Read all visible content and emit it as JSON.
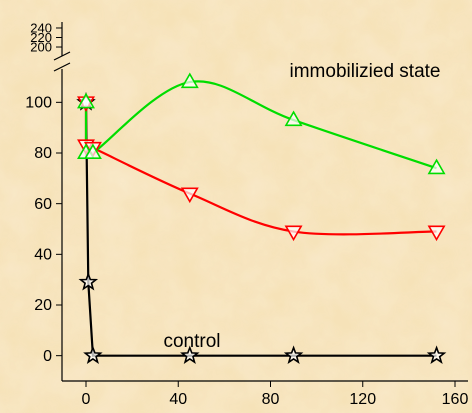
{
  "chart_data": {
    "type": "line",
    "annotations": [
      "immobilizied state",
      "control"
    ],
    "xlim": [
      0,
      160
    ],
    "xticks": [
      0,
      40,
      80,
      120,
      160
    ],
    "ylim": [
      -10,
      245
    ],
    "ybreak": [
      110,
      195
    ],
    "yticks": [
      0,
      20,
      40,
      60,
      80,
      100,
      200,
      220,
      240
    ],
    "series": [
      {
        "name": "control",
        "color": "#000000",
        "marker": "star",
        "x": [
          0,
          1,
          3,
          45,
          90,
          152
        ],
        "values": [
          100,
          29,
          0,
          0,
          0,
          0
        ]
      },
      {
        "color": "#ff0000",
        "marker": "triangle-down",
        "x": [
          0,
          0,
          3,
          45,
          90,
          152
        ],
        "values": [
          100,
          83,
          82,
          64,
          49,
          49
        ]
      },
      {
        "color": "#00dd00",
        "marker": "triangle-up",
        "x": [
          0,
          0,
          3,
          45,
          90,
          152
        ],
        "values": [
          100,
          80,
          80,
          108,
          93,
          74
        ]
      }
    ]
  }
}
